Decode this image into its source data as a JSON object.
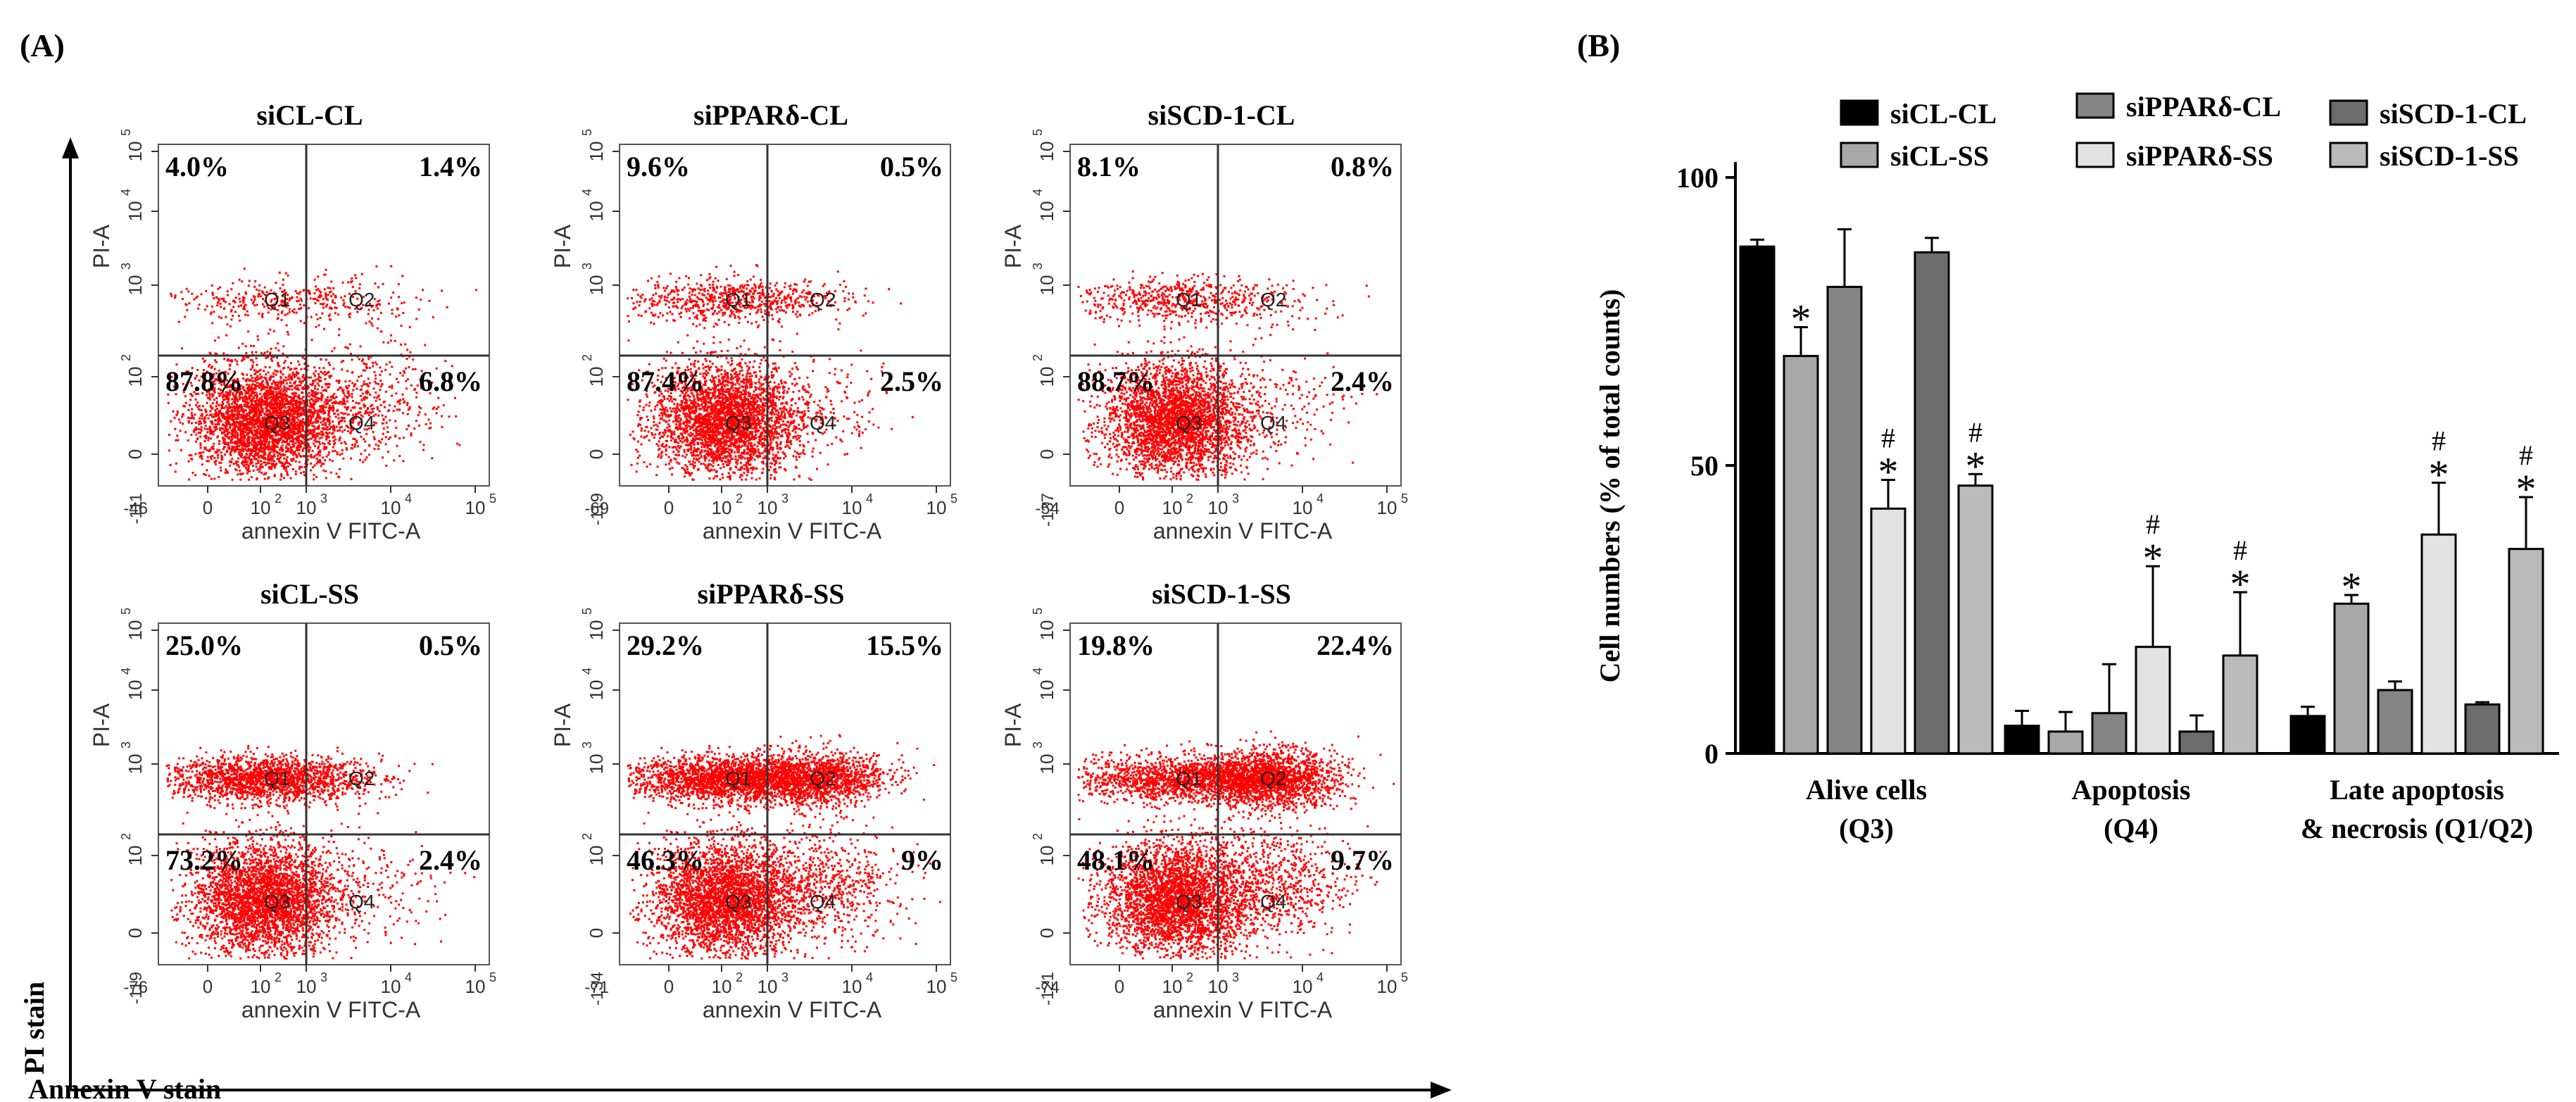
{
  "panel_a": {
    "label": "(A)",
    "y_axis_label": "PI stain",
    "x_axis_label": "Annexin V stain",
    "plots": [
      {
        "title": "siCL-CL",
        "q1": "4.0%",
        "q2": "1.4%",
        "q3": "87.8%",
        "q4": "6.8%",
        "x_min": "-46",
        "y_min": "-111"
      },
      {
        "title": "siPPARδ-CL",
        "q1": "9.6%",
        "q2": "0.5%",
        "q3": "87.4%",
        "q4": "2.5%",
        "x_min": "-69",
        "y_min": "-119"
      },
      {
        "title": "siSCD-1-CL",
        "q1": "8.1%",
        "q2": "0.8%",
        "q3": "88.7%",
        "q4": "2.4%",
        "x_min": "-54",
        "y_min": "-137"
      },
      {
        "title": "siCL-SS",
        "q1": "25.0%",
        "q2": "0.5%",
        "q3": "73.2%",
        "q4": "2.4%",
        "x_min": "-76",
        "y_min": "-119"
      },
      {
        "title": "siPPARδ-SS",
        "q1": "29.2%",
        "q2": "15.5%",
        "q3": "46.3%",
        "q4": "9%",
        "x_min": "-71",
        "y_min": "-134"
      },
      {
        "title": "siSCD-1-SS",
        "q1": "19.8%",
        "q2": "22.4%",
        "q3": "48.1%",
        "q4": "9.7%",
        "x_min": "-74",
        "y_min": "-121"
      }
    ],
    "plot_axis": {
      "x_title": "annexin V FITC-A",
      "y_title": "PI-A",
      "x_ticks": [
        "0",
        "10",
        "10",
        "10",
        "10"
      ],
      "x_tick_exps": [
        "",
        "2",
        "3",
        "4",
        "5"
      ],
      "y_ticks": [
        "0",
        "10",
        "10",
        "10",
        "10"
      ],
      "y_tick_exps": [
        "",
        "2",
        "3",
        "4",
        "5"
      ],
      "quadrant_names": [
        "Q1",
        "Q2",
        "Q3",
        "Q4"
      ]
    },
    "dot_color": "#ff0000"
  },
  "chart_data": {
    "type": "bar",
    "panel_label": "(B)",
    "title": "",
    "ylabel": "Cell numbers (% of total counts)",
    "xlabel": "",
    "ylim": [
      0,
      100
    ],
    "yticks": [
      "0",
      "50",
      "100"
    ],
    "categories": [
      {
        "line1": "Alive cells",
        "line2": "(Q3)"
      },
      {
        "line1": "Apoptosis",
        "line2": "(Q4)"
      },
      {
        "line1": "Late apoptosis",
        "line2": "& necrosis (Q1/Q2)"
      }
    ],
    "legend_position": "top",
    "series": [
      {
        "name": "siCL-CL",
        "color": "#000000",
        "values": [
          88,
          4.8,
          6.5
        ],
        "errors": [
          1.2,
          2.6,
          1.6
        ],
        "marks": [
          [
            "",
            ""
          ],
          [
            "",
            ""
          ],
          [
            "",
            ""
          ]
        ]
      },
      {
        "name": "siCL-SS",
        "color": "#a8a8a8",
        "values": [
          69,
          3.8,
          26
        ],
        "errors": [
          5,
          3.4,
          1.5
        ],
        "marks": [
          [
            "*",
            ""
          ],
          [
            "",
            ""
          ],
          [
            "*",
            ""
          ]
        ]
      },
      {
        "name": "siPPARδ-CL",
        "color": "#848484",
        "values": [
          81,
          7,
          11
        ],
        "errors": [
          10,
          8.5,
          1.5
        ],
        "marks": [
          [
            "",
            ""
          ],
          [
            "",
            ""
          ],
          [
            "",
            ""
          ]
        ]
      },
      {
        "name": "siPPARδ-SS",
        "color": "#e2e2e2",
        "values": [
          42.5,
          18.5,
          38
        ],
        "errors": [
          5,
          14,
          9
        ],
        "marks": [
          [
            "*",
            "#"
          ],
          [
            "*",
            "#"
          ],
          [
            "*",
            "#"
          ]
        ]
      },
      {
        "name": "siSCD-1-CL",
        "color": "#6c6c6c",
        "values": [
          87,
          3.8,
          8.5
        ],
        "errors": [
          2.5,
          2.8,
          0.4
        ],
        "marks": [
          [
            "",
            ""
          ],
          [
            "",
            ""
          ],
          [
            "",
            ""
          ]
        ]
      },
      {
        "name": "siSCD-1-SS",
        "color": "#bababa",
        "values": [
          46.5,
          17,
          35.5
        ],
        "errors": [
          2,
          11,
          9
        ],
        "marks": [
          [
            "*",
            "#"
          ],
          [
            "*",
            "#"
          ],
          [
            "*",
            "#"
          ]
        ]
      }
    ]
  }
}
